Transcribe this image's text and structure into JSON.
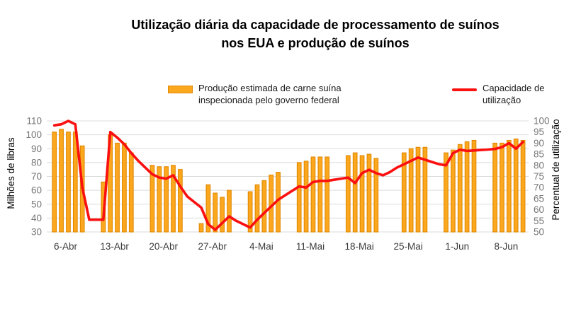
{
  "title": {
    "line1": "Utilização diária da capacidade de processamento de suínos",
    "line2": "nos EUA e produção de suínos"
  },
  "legend": {
    "bars_line1": "Produção estimada de carne suína",
    "bars_line2": "inspecionada pelo governo federal",
    "line_line1": "Capacidade de",
    "line_line2": "utilização"
  },
  "colors": {
    "bar_fill": "#FBA81F",
    "bar_edge": "#E18700",
    "line": "#FA1010",
    "grid": "#DBDBDB",
    "ytick_label": "#767676",
    "xtick_label": "#3A3A3A",
    "axis_title": "#000000",
    "background": "#FFFFFF"
  },
  "chart_data": {
    "type": "bar+line",
    "title": "Utilização diária da capacidade de processamento de suínos nos EUA e produção de suínos",
    "bar_series_name": "Produção estimada de carne suína inspecionada pelo governo federal",
    "line_series_name": "Capacidade de utilização",
    "ylabel_left": "Milhões de libras",
    "ylabel_right": "Percentual de utilização",
    "ylim_left": [
      30,
      110
    ],
    "ylim_right": [
      50,
      100
    ],
    "yticks_left": [
      110,
      100,
      90,
      80,
      70,
      60,
      50,
      40,
      30
    ],
    "yticks_right": [
      100,
      95,
      90,
      85,
      80,
      75,
      70,
      65,
      60,
      55,
      50
    ],
    "grid": "horizontal",
    "legend_position": "top",
    "week_labels": [
      "6-Abr",
      "13-Abr",
      "20-Abr",
      "27-Abr",
      "4-Mai",
      "11-Mai",
      "18-Mai",
      "25-Mai",
      "1-Jun",
      "8-Jun"
    ],
    "days_per_week": 7,
    "bars_weeks_millions_lbs": [
      [
        102,
        104,
        102,
        102,
        92,
        null,
        null
      ],
      [
        66,
        100,
        94,
        94,
        87,
        null,
        null
      ],
      [
        78,
        77,
        77,
        78,
        75,
        null,
        null
      ],
      [
        36,
        64,
        58,
        55,
        60,
        null,
        null
      ],
      [
        59,
        64,
        67,
        71,
        73,
        null,
        null
      ],
      [
        80,
        81,
        84,
        84,
        84,
        null,
        null
      ],
      [
        85,
        87,
        85,
        86,
        83,
        null,
        null
      ],
      [
        null,
        87,
        90,
        91,
        91,
        null,
        null
      ],
      [
        87,
        89,
        93,
        95,
        96,
        null,
        null
      ],
      [
        94,
        94,
        96,
        97,
        96,
        null,
        null
      ]
    ],
    "line_weeks_percent": [
      [
        98,
        98.5,
        100,
        98.5,
        70,
        55.5,
        55.5
      ],
      [
        55.5,
        95,
        92.5,
        89.5,
        85.5,
        82,
        79
      ],
      [
        76,
        74.5,
        74,
        75.5,
        70.5,
        66,
        63.5
      ],
      [
        61,
        53.5,
        51,
        54,
        57,
        55,
        53.5
      ],
      [
        52,
        55.5,
        58.5,
        61.5,
        64.5,
        66.5,
        68.5
      ],
      [
        70.5,
        70,
        72.5,
        73,
        73,
        73.5,
        74
      ],
      [
        74.5,
        72,
        76.5,
        78,
        76.5,
        75.5,
        77
      ],
      [
        79,
        80.5,
        82,
        83.5,
        82.5,
        81.5,
        80.5
      ],
      [
        80,
        85.5,
        87,
        86.5,
        86.7,
        86.9,
        87.1
      ],
      [
        87.4,
        88.2,
        90,
        87.5,
        90.5,
        null,
        null
      ]
    ]
  }
}
